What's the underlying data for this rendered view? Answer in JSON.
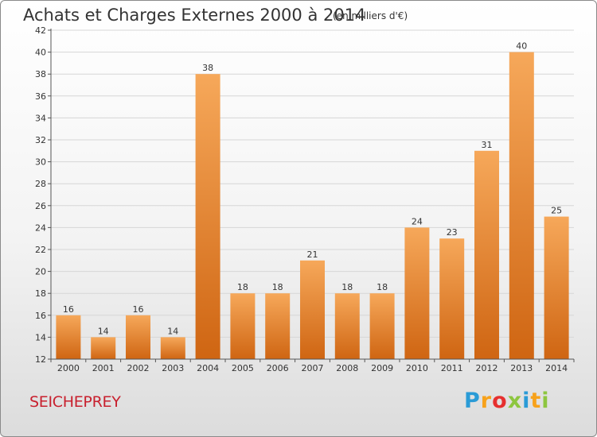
{
  "header": {
    "title": "Achats et Charges Externes 2000 à 2014",
    "subtitle": "(en milliers d'€)"
  },
  "footer": {
    "commune": "SEICHEPREY",
    "brand_letters": [
      "P",
      "r",
      "o",
      "x",
      "i",
      "t",
      "i"
    ],
    "brand_colors": [
      "#2a9bd6",
      "#f7a21b",
      "#e6302f",
      "#8dc63f",
      "#2a9bd6",
      "#f7a21b",
      "#8dc63f"
    ]
  },
  "colors": {
    "bar_light": "#f6a85a",
    "bar_dark": "#cf6512",
    "grid": "#d6d6d6",
    "axis": "#555555",
    "text": "#333333"
  },
  "chart_data": {
    "type": "bar",
    "title": "Achats et Charges Externes 2000 à 2014",
    "subtitle": "(en milliers d'€)",
    "xlabel": "",
    "ylabel": "",
    "categories": [
      "2000",
      "2001",
      "2002",
      "2003",
      "2004",
      "2005",
      "2006",
      "2007",
      "2008",
      "2009",
      "2010",
      "2011",
      "2012",
      "2013",
      "2014"
    ],
    "values": [
      16,
      14,
      16,
      14,
      38,
      18,
      18,
      21,
      18,
      18,
      24,
      23,
      31,
      40,
      25
    ],
    "ylim": [
      12,
      42
    ],
    "yticks": [
      12,
      14,
      16,
      18,
      20,
      22,
      24,
      26,
      28,
      30,
      32,
      34,
      36,
      38,
      40,
      42
    ],
    "grid": true,
    "legend": "none"
  }
}
